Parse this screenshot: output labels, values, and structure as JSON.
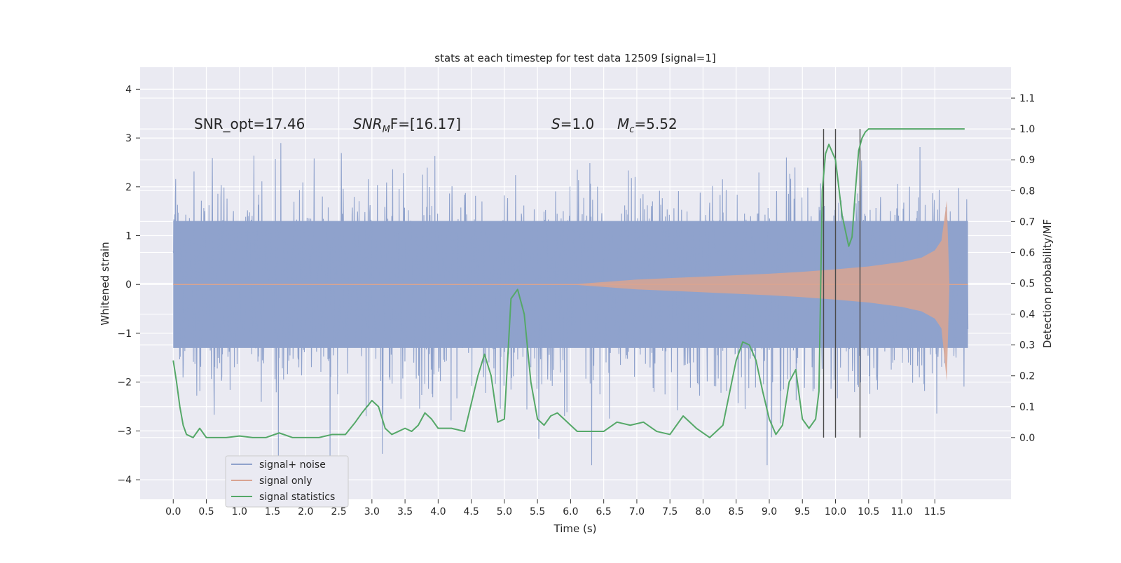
{
  "chart_data": {
    "type": "line",
    "title": "stats at each timestep for test data 12509 [signal=1]",
    "xlabel": "Time (s)",
    "ylabel_left": "Whitened strain",
    "ylabel_right": "Detection probability/MF",
    "xlim": [
      -0.5,
      12.65
    ],
    "ylim_left": [
      -4.4,
      4.45
    ],
    "ylim_right": [
      -0.2,
      1.2
    ],
    "x_ticks": [
      "0.0",
      "0.5",
      "1.0",
      "1.5",
      "2.0",
      "2.5",
      "3.0",
      "3.5",
      "4.0",
      "4.5",
      "5.0",
      "5.5",
      "6.0",
      "6.5",
      "7.0",
      "7.5",
      "8.0",
      "8.5",
      "9.0",
      "9.5",
      "10.0",
      "10.5",
      "11.0",
      "11.5"
    ],
    "y_left_ticks": [
      "4",
      "3",
      "2",
      "1",
      "0",
      "−1",
      "−2",
      "−3",
      "−4"
    ],
    "y_right_ticks": [
      "1.1",
      "1.0",
      "0.9",
      "0.8",
      "0.7",
      "0.6",
      "0.5",
      "0.4",
      "0.3",
      "0.2",
      "0.1",
      "0.0"
    ],
    "grid": true,
    "legend_position": "lower-left",
    "annotations": {
      "snr_opt": "SNR_opt=17.46",
      "snr_mf_main": "SNR",
      "snr_mf_sub": "M",
      "snr_mf_rest": "F=[16.17]",
      "s_var": "S",
      "s_rest": "=1.0",
      "mc_var": "M",
      "mc_sub": "c",
      "mc_rest": "=5.52"
    },
    "vertical_lines_x": [
      9.82,
      10.0,
      10.37
    ],
    "series": [
      {
        "name": "signal+ noise",
        "color": "#8fa2cc",
        "axis": "left",
        "description_values": {
          "core_band": [
            -1.3,
            1.3
          ],
          "x_range": [
            0.0,
            12.0
          ],
          "typical_peak": 3.2
        }
      },
      {
        "name": "signal only",
        "color": "#d9a491",
        "axis": "left",
        "envelope": {
          "x": [
            0.0,
            6.0,
            6.5,
            7.0,
            7.5,
            8.0,
            8.5,
            9.0,
            9.5,
            10.0,
            10.5,
            11.0,
            11.3,
            11.5,
            11.6,
            11.68,
            11.72
          ],
          "amp": [
            0.0,
            0.0,
            0.05,
            0.1,
            0.13,
            0.16,
            0.19,
            0.22,
            0.26,
            0.31,
            0.37,
            0.46,
            0.55,
            0.7,
            0.9,
            1.72,
            0.0
          ]
        }
      },
      {
        "name": "signal statistics",
        "color": "#55a868",
        "axis": "right",
        "x": [
          0.0,
          0.05,
          0.1,
          0.15,
          0.2,
          0.3,
          0.4,
          0.5,
          0.6,
          0.7,
          0.8,
          1.0,
          1.2,
          1.4,
          1.6,
          1.8,
          2.0,
          2.2,
          2.4,
          2.6,
          2.75,
          2.85,
          3.0,
          3.1,
          3.2,
          3.3,
          3.4,
          3.5,
          3.6,
          3.7,
          3.8,
          3.9,
          4.0,
          4.2,
          4.4,
          4.6,
          4.7,
          4.8,
          4.9,
          5.0,
          5.1,
          5.2,
          5.3,
          5.4,
          5.5,
          5.6,
          5.7,
          5.8,
          5.9,
          6.0,
          6.1,
          6.3,
          6.5,
          6.7,
          6.9,
          7.1,
          7.3,
          7.5,
          7.7,
          7.9,
          8.1,
          8.3,
          8.5,
          8.6,
          8.7,
          8.8,
          8.9,
          9.0,
          9.1,
          9.2,
          9.3,
          9.4,
          9.5,
          9.6,
          9.7,
          9.75,
          9.8,
          9.85,
          9.9,
          10.0,
          10.1,
          10.2,
          10.25,
          10.3,
          10.35,
          10.4,
          10.45,
          10.5,
          10.6,
          10.8,
          11.0,
          11.5,
          11.95
        ],
        "values": [
          0.25,
          0.18,
          0.1,
          0.04,
          0.01,
          0.0,
          0.03,
          0.0,
          0.0,
          0.0,
          0.0,
          0.005,
          0.0,
          0.0,
          0.015,
          0.0,
          0.0,
          0.0,
          0.01,
          0.01,
          0.05,
          0.08,
          0.12,
          0.1,
          0.03,
          0.01,
          0.02,
          0.03,
          0.02,
          0.04,
          0.08,
          0.06,
          0.03,
          0.03,
          0.02,
          0.2,
          0.27,
          0.2,
          0.05,
          0.06,
          0.45,
          0.48,
          0.4,
          0.18,
          0.06,
          0.04,
          0.07,
          0.08,
          0.06,
          0.04,
          0.02,
          0.02,
          0.02,
          0.05,
          0.04,
          0.05,
          0.02,
          0.01,
          0.07,
          0.03,
          0.0,
          0.04,
          0.25,
          0.31,
          0.3,
          0.25,
          0.15,
          0.06,
          0.01,
          0.04,
          0.18,
          0.22,
          0.06,
          0.03,
          0.06,
          0.15,
          0.8,
          0.92,
          0.95,
          0.9,
          0.72,
          0.62,
          0.65,
          0.8,
          0.93,
          0.97,
          0.99,
          1.0,
          1.0,
          1.0,
          1.0,
          1.0,
          1.0
        ]
      }
    ]
  }
}
